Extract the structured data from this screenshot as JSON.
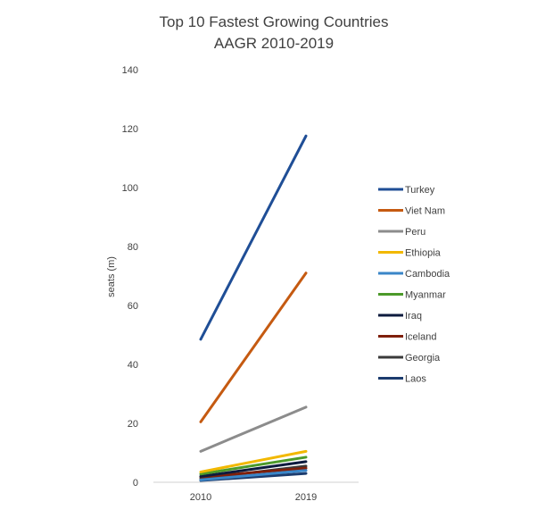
{
  "chart_data": {
    "type": "line",
    "title": "Top 10 Fastest Growing Countries",
    "subtitle": "AAGR 2010-2019",
    "xlabel": "",
    "ylabel": "seats (m)",
    "categories": [
      "2010",
      "2019"
    ],
    "ylim": [
      0,
      140
    ],
    "yticks": [
      0,
      20,
      40,
      60,
      80,
      100,
      120,
      140
    ],
    "grid": false,
    "legend_position": "right",
    "series": [
      {
        "name": "Turkey",
        "values": [
          48.5,
          117.5
        ],
        "color": "#1f4e96"
      },
      {
        "name": "Viet Nam",
        "values": [
          20.5,
          71.0
        ],
        "color": "#c55a11"
      },
      {
        "name": "Peru",
        "values": [
          10.5,
          25.5
        ],
        "color": "#8c8c8c"
      },
      {
        "name": "Ethiopia",
        "values": [
          3.5,
          10.5
        ],
        "color": "#f2b800"
      },
      {
        "name": "Cambodia",
        "values": [
          0.8,
          4.0
        ],
        "color": "#3a86c8"
      },
      {
        "name": "Myanmar",
        "values": [
          2.8,
          8.5
        ],
        "color": "#4c9a2a"
      },
      {
        "name": "Iraq",
        "values": [
          2.0,
          7.0
        ],
        "color": "#0d1b3e"
      },
      {
        "name": "Iceland",
        "values": [
          1.8,
          4.8
        ],
        "color": "#7f1f0a"
      },
      {
        "name": "Georgia",
        "values": [
          1.2,
          5.5
        ],
        "color": "#3a3a3a"
      },
      {
        "name": "Laos",
        "values": [
          0.6,
          3.0
        ],
        "color": "#1c3c6e"
      }
    ]
  }
}
